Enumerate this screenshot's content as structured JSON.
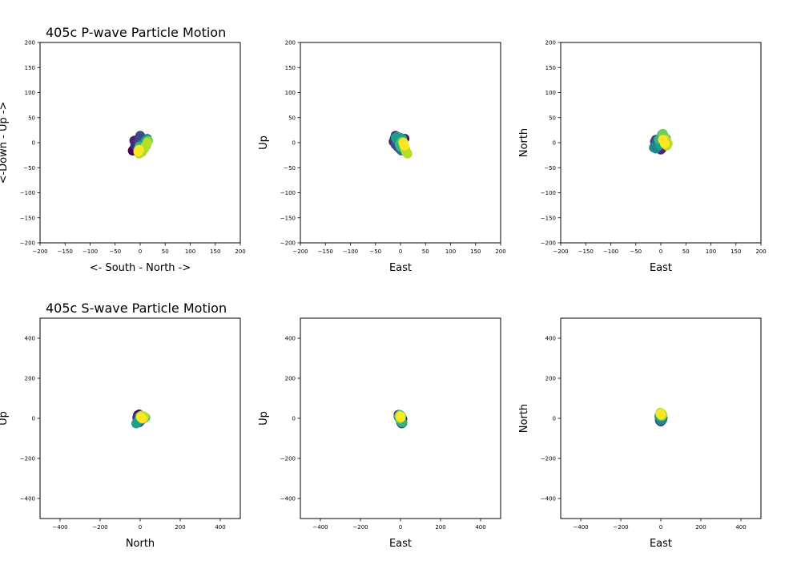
{
  "figure": {
    "background": "#ffffff"
  },
  "chart_data": [
    {
      "type": "scatter",
      "title": "405c P-wave Particle Motion",
      "xlabel": "<- South - North ->",
      "ylabel": "<-Down - Up ->",
      "xlim": [
        -200,
        200
      ],
      "ylim": [
        -200,
        200
      ],
      "xticks": [
        -200,
        -150,
        -100,
        -50,
        0,
        50,
        100,
        150,
        200
      ],
      "yticks": [
        -200,
        -150,
        -100,
        -50,
        0,
        50,
        100,
        150,
        200
      ],
      "grid": false,
      "colormap": "viridis",
      "series": [
        {
          "points": [
            [
              -15,
              -16
            ],
            [
              -12,
              -12
            ],
            [
              -10,
              -6
            ],
            [
              -8,
              -2
            ],
            [
              -12,
              4
            ],
            [
              -6,
              6
            ],
            [
              0,
              14
            ],
            [
              2,
              10
            ],
            [
              4,
              6
            ],
            [
              -2,
              2
            ],
            [
              0,
              -4
            ],
            [
              2,
              -8
            ],
            [
              6,
              -10
            ],
            [
              8,
              -6
            ],
            [
              10,
              -2
            ],
            [
              12,
              4
            ],
            [
              14,
              8
            ],
            [
              10,
              2
            ],
            [
              6,
              -4
            ],
            [
              2,
              -12
            ],
            [
              0,
              -18
            ],
            [
              -2,
              -20
            ],
            [
              -4,
              -14
            ],
            [
              -2,
              -8
            ],
            [
              4,
              -18
            ],
            [
              8,
              -12
            ],
            [
              12,
              -6
            ],
            [
              16,
              4
            ],
            [
              14,
              0
            ],
            [
              10,
              -8
            ],
            [
              4,
              -16
            ],
            [
              -2,
              -22
            ],
            [
              -4,
              -18
            ],
            [
              -2,
              -14
            ]
          ]
        }
      ]
    },
    {
      "type": "scatter",
      "title": "",
      "xlabel": "East",
      "ylabel": "Up",
      "xlim": [
        -200,
        200
      ],
      "ylim": [
        -200,
        200
      ],
      "xticks": [
        -200,
        -150,
        -100,
        -50,
        0,
        50,
        100,
        150,
        200
      ],
      "yticks": [
        -200,
        -150,
        -100,
        -50,
        0,
        50,
        100,
        150,
        200
      ],
      "grid": false,
      "colormap": "viridis",
      "series": [
        {
          "points": [
            [
              8,
              8
            ],
            [
              4,
              6
            ],
            [
              -2,
              4
            ],
            [
              -10,
              14
            ],
            [
              -12,
              8
            ],
            [
              -14,
              2
            ],
            [
              -10,
              -4
            ],
            [
              -6,
              -8
            ],
            [
              -2,
              -12
            ],
            [
              2,
              -16
            ],
            [
              6,
              -14
            ],
            [
              8,
              -10
            ],
            [
              6,
              -4
            ],
            [
              2,
              0
            ],
            [
              -4,
              2
            ],
            [
              -8,
              6
            ],
            [
              -10,
              10
            ],
            [
              -6,
              12
            ],
            [
              0,
              10
            ],
            [
              4,
              8
            ],
            [
              2,
              2
            ],
            [
              -2,
              -4
            ],
            [
              0,
              -8
            ],
            [
              4,
              -10
            ],
            [
              6,
              -6
            ],
            [
              4,
              2
            ],
            [
              8,
              -10
            ],
            [
              10,
              -16
            ],
            [
              12,
              -20
            ],
            [
              14,
              -22
            ],
            [
              10,
              -14
            ],
            [
              8,
              -6
            ],
            [
              6,
              0
            ]
          ]
        }
      ]
    },
    {
      "type": "scatter",
      "title": "",
      "xlabel": "East",
      "ylabel": "North",
      "xlim": [
        -200,
        200
      ],
      "ylim": [
        -200,
        200
      ],
      "xticks": [
        -200,
        -150,
        -100,
        -50,
        0,
        50,
        100,
        150,
        200
      ],
      "yticks": [
        -200,
        -150,
        -100,
        -50,
        0,
        50,
        100,
        150,
        200
      ],
      "grid": false,
      "colormap": "viridis",
      "series": [
        {
          "points": [
            [
              10,
              8
            ],
            [
              8,
              2
            ],
            [
              4,
              -4
            ],
            [
              2,
              -12
            ],
            [
              0,
              -14
            ],
            [
              -4,
              -10
            ],
            [
              -10,
              -4
            ],
            [
              -12,
              2
            ],
            [
              -10,
              6
            ],
            [
              -6,
              4
            ],
            [
              -4,
              0
            ],
            [
              -8,
              -4
            ],
            [
              -12,
              -6
            ],
            [
              -14,
              -10
            ],
            [
              -10,
              -12
            ],
            [
              -6,
              -8
            ],
            [
              -2,
              -4
            ],
            [
              2,
              0
            ],
            [
              0,
              4
            ],
            [
              -4,
              6
            ],
            [
              0,
              8
            ],
            [
              4,
              12
            ],
            [
              2,
              16
            ],
            [
              4,
              18
            ],
            [
              6,
              14
            ],
            [
              8,
              10
            ],
            [
              10,
              6
            ],
            [
              12,
              2
            ],
            [
              14,
              -2
            ],
            [
              12,
              -6
            ],
            [
              8,
              -2
            ],
            [
              4,
              6
            ]
          ]
        }
      ]
    },
    {
      "type": "scatter",
      "title": "405c S-wave Particle Motion",
      "xlabel": "North",
      "ylabel": "Up",
      "xlim": [
        -500,
        500
      ],
      "ylim": [
        -500,
        500
      ],
      "xticks": [
        -400,
        -200,
        0,
        200,
        400
      ],
      "yticks": [
        -400,
        -200,
        0,
        200,
        400
      ],
      "grid": false,
      "colormap": "viridis",
      "series": [
        {
          "points": [
            [
              -5,
              20
            ],
            [
              -12,
              15
            ],
            [
              -15,
              5
            ],
            [
              -14,
              -5
            ],
            [
              -10,
              -15
            ],
            [
              -5,
              -20
            ],
            [
              0,
              -15
            ],
            [
              5,
              -8
            ],
            [
              0,
              0
            ],
            [
              -5,
              8
            ],
            [
              0,
              12
            ],
            [
              5,
              8
            ],
            [
              10,
              2
            ],
            [
              5,
              -5
            ],
            [
              -2,
              -8
            ],
            [
              -10,
              -14
            ],
            [
              -16,
              -22
            ],
            [
              -20,
              -26
            ],
            [
              -14,
              -18
            ],
            [
              -6,
              -6
            ],
            [
              4,
              0
            ],
            [
              12,
              4
            ],
            [
              20,
              6
            ],
            [
              26,
              4
            ],
            [
              20,
              0
            ],
            [
              12,
              -2
            ],
            [
              4,
              4
            ],
            [
              0,
              10
            ],
            [
              6,
              14
            ],
            [
              14,
              12
            ],
            [
              22,
              8
            ],
            [
              18,
              2
            ],
            [
              10,
              0
            ],
            [
              4,
              6
            ]
          ]
        }
      ]
    },
    {
      "type": "scatter",
      "title": "",
      "xlabel": "East",
      "ylabel": "Up",
      "xlim": [
        -500,
        500
      ],
      "ylim": [
        -500,
        500
      ],
      "xticks": [
        -400,
        -200,
        0,
        200,
        400
      ],
      "yticks": [
        -400,
        -200,
        0,
        200,
        400
      ],
      "grid": false,
      "colormap": "viridis",
      "series": [
        {
          "points": [
            [
              -10,
              18
            ],
            [
              -4,
              14
            ],
            [
              0,
              10
            ],
            [
              6,
              4
            ],
            [
              10,
              -4
            ],
            [
              6,
              -12
            ],
            [
              2,
              -20
            ],
            [
              6,
              -26
            ],
            [
              10,
              -22
            ],
            [
              4,
              -14
            ],
            [
              -2,
              -6
            ],
            [
              -6,
              2
            ],
            [
              -10,
              8
            ],
            [
              -8,
              14
            ],
            [
              -4,
              18
            ],
            [
              0,
              14
            ],
            [
              4,
              8
            ],
            [
              0,
              2
            ],
            [
              -4,
              -2
            ],
            [
              0,
              -8
            ],
            [
              4,
              -16
            ],
            [
              8,
              -20
            ],
            [
              2,
              -10
            ],
            [
              -2,
              0
            ],
            [
              -6,
              10
            ],
            [
              -4,
              16
            ],
            [
              -2,
              12
            ],
            [
              2,
              8
            ],
            [
              0,
              4
            ],
            [
              -2,
              8
            ],
            [
              2,
              6
            ],
            [
              0,
              10
            ]
          ]
        }
      ]
    },
    {
      "type": "scatter",
      "title": "",
      "xlabel": "East",
      "ylabel": "North",
      "xlim": [
        -500,
        500
      ],
      "ylim": [
        -500,
        500
      ],
      "xticks": [
        -400,
        -200,
        0,
        200,
        400
      ],
      "yticks": [
        -400,
        -200,
        0,
        200,
        400
      ],
      "grid": false,
      "colormap": "viridis",
      "series": [
        {
          "points": [
            [
              -6,
              10
            ],
            [
              -2,
              6
            ],
            [
              2,
              0
            ],
            [
              6,
              -6
            ],
            [
              4,
              -12
            ],
            [
              0,
              -16
            ],
            [
              -4,
              -12
            ],
            [
              -6,
              -6
            ],
            [
              -2,
              -2
            ],
            [
              2,
              4
            ],
            [
              6,
              8
            ],
            [
              10,
              2
            ],
            [
              8,
              -6
            ],
            [
              4,
              -10
            ],
            [
              0,
              -4
            ],
            [
              -4,
              4
            ],
            [
              -8,
              10
            ],
            [
              -6,
              16
            ],
            [
              -2,
              20
            ],
            [
              2,
              24
            ],
            [
              6,
              20
            ],
            [
              8,
              14
            ],
            [
              4,
              10
            ],
            [
              0,
              16
            ],
            [
              -4,
              22
            ],
            [
              -2,
              28
            ],
            [
              2,
              26
            ],
            [
              6,
              22
            ],
            [
              8,
              16
            ],
            [
              4,
              14
            ],
            [
              0,
              20
            ],
            [
              -2,
              24
            ]
          ]
        }
      ]
    }
  ]
}
